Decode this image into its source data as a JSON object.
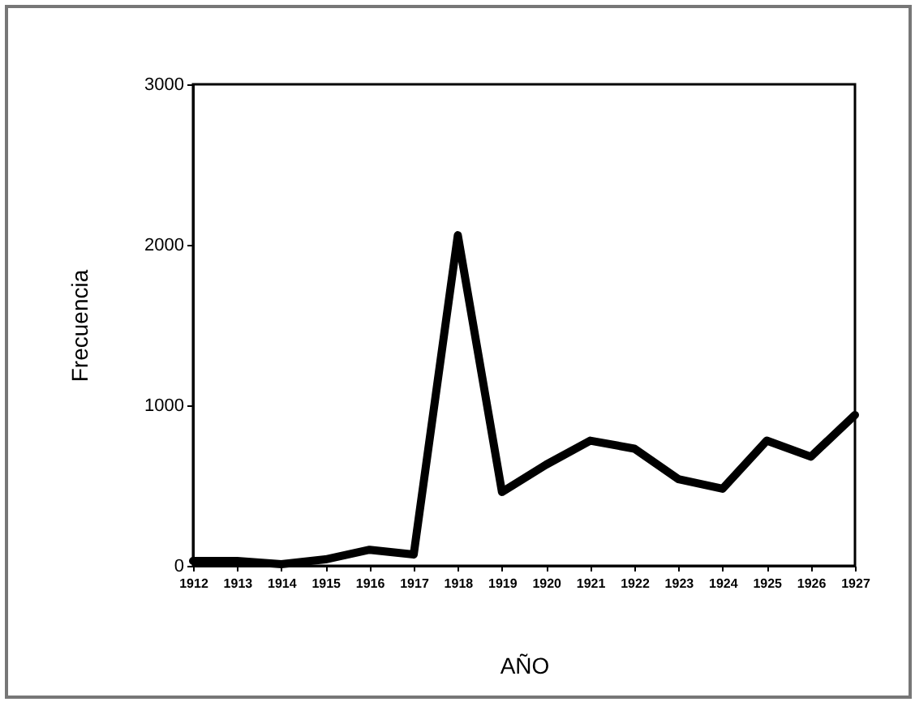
{
  "chart_data": {
    "type": "line",
    "xlabel": "AÑO",
    "ylabel": "Frecuencia",
    "x": [
      1912,
      1913,
      1914,
      1915,
      1916,
      1917,
      1918,
      1919,
      1920,
      1921,
      1922,
      1923,
      1924,
      1925,
      1926,
      1927
    ],
    "series": [
      {
        "color": "#000000",
        "values": [
          30,
          30,
          10,
          40,
          100,
          70,
          2060,
          460,
          630,
          780,
          730,
          540,
          480,
          780,
          680,
          940
        ]
      }
    ],
    "xlim": [
      1912,
      1927
    ],
    "xticks": [
      1912,
      1913,
      1914,
      1915,
      1916,
      1917,
      1918,
      1919,
      1920,
      1921,
      1922,
      1923,
      1924,
      1925,
      1926,
      1927
    ],
    "ylim": [
      0,
      3000
    ],
    "yticks": [
      0,
      1000,
      2000,
      3000
    ],
    "line_style": "solid"
  }
}
